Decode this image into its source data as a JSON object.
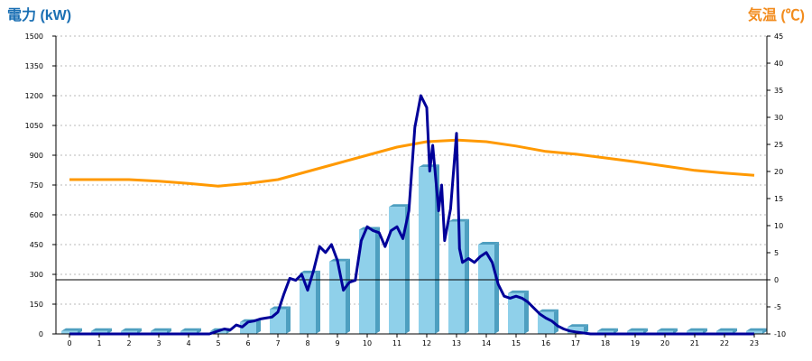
{
  "chart_data": {
    "type": "bar",
    "y_left_label": "電力 (kW)",
    "y_right_label": "気温 (℃)",
    "categories": [
      "0",
      "1",
      "2",
      "3",
      "4",
      "5",
      "6",
      "7",
      "8",
      "9",
      "10",
      "11",
      "12",
      "13",
      "14",
      "15",
      "16",
      "17",
      "18",
      "19",
      "20",
      "21",
      "22",
      "23"
    ],
    "y_left_ticks": [
      "0",
      "150",
      "300",
      "450",
      "600",
      "750",
      "900",
      "1050",
      "1200",
      "1350",
      "1500"
    ],
    "y_right_ticks": [
      "-10",
      "-5",
      "0",
      "5",
      "10",
      "15",
      "20",
      "25",
      "30",
      "35",
      "40",
      "45"
    ],
    "ylim_left": [
      0,
      1500
    ],
    "ylim_right": [
      -10,
      45
    ],
    "grid": true,
    "colors": {
      "bar": "#8fd0ea",
      "bar_side": "#4e9fc0",
      "power_line": "#000099",
      "temp_line": "#ff9900",
      "left_title": "#1a6fb3",
      "right_title": "#f28c1e"
    },
    "bars": [
      {
        "x": 0,
        "value": 15
      },
      {
        "x": 1,
        "value": 15
      },
      {
        "x": 2,
        "value": 15
      },
      {
        "x": 3,
        "value": 15
      },
      {
        "x": 4,
        "value": 15
      },
      {
        "x": 5,
        "value": 15
      },
      {
        "x": 6,
        "value": 60
      },
      {
        "x": 7,
        "value": 125
      },
      {
        "x": 8,
        "value": 305
      },
      {
        "x": 9,
        "value": 365
      },
      {
        "x": 10,
        "value": 525
      },
      {
        "x": 11,
        "value": 640
      },
      {
        "x": 12,
        "value": 840
      },
      {
        "x": 13,
        "value": 565
      },
      {
        "x": 14,
        "value": 450
      },
      {
        "x": 15,
        "value": 205
      },
      {
        "x": 16,
        "value": 110
      },
      {
        "x": 17,
        "value": 35
      },
      {
        "x": 18,
        "value": 15
      },
      {
        "x": 19,
        "value": 15
      },
      {
        "x": 20,
        "value": 15
      },
      {
        "x": 21,
        "value": 15
      },
      {
        "x": 22,
        "value": 15
      },
      {
        "x": 23,
        "value": 15
      }
    ],
    "power_line": {
      "x": [
        0,
        1,
        2,
        3,
        4,
        4.7,
        5,
        5.2,
        5.4,
        5.6,
        5.8,
        6,
        6.2,
        6.4,
        6.6,
        6.8,
        7,
        7.2,
        7.4,
        7.6,
        7.8,
        8,
        8.2,
        8.4,
        8.6,
        8.8,
        9,
        9.2,
        9.4,
        9.6,
        9.8,
        10,
        10.2,
        10.4,
        10.6,
        10.8,
        11,
        11.2,
        11.4,
        11.6,
        11.8,
        12,
        12.1,
        12.2,
        12.4,
        12.5,
        12.6,
        12.8,
        13,
        13.1,
        13.2,
        13.4,
        13.6,
        13.8,
        14,
        14.2,
        14.4,
        14.6,
        14.8,
        15,
        15.2,
        15.4,
        15.6,
        15.8,
        16,
        16.2,
        16.4,
        16.6,
        16.8,
        17,
        17.5,
        18,
        19,
        20,
        21,
        22,
        23
      ],
      "values": [
        0,
        0,
        0,
        0,
        0,
        0,
        15,
        25,
        20,
        45,
        35,
        60,
        65,
        75,
        80,
        85,
        110,
        200,
        280,
        270,
        300,
        220,
        320,
        440,
        410,
        450,
        370,
        220,
        260,
        270,
        470,
        540,
        520,
        510,
        440,
        520,
        540,
        480,
        620,
        1040,
        1200,
        1140,
        820,
        950,
        620,
        750,
        470,
        630,
        1010,
        430,
        360,
        380,
        360,
        390,
        410,
        360,
        250,
        190,
        180,
        190,
        180,
        160,
        130,
        100,
        80,
        65,
        40,
        25,
        15,
        10,
        0,
        0,
        0,
        0,
        0,
        0,
        0
      ]
    },
    "temp_line": {
      "x": [
        0,
        1,
        2,
        3,
        4,
        5,
        6,
        7,
        8,
        9,
        10,
        11,
        12,
        13,
        14,
        15,
        16,
        17,
        18,
        19,
        20,
        21,
        22,
        23
      ],
      "values": [
        18.5,
        18.5,
        18.5,
        18.2,
        17.8,
        17.3,
        17.8,
        18.5,
        20,
        21.5,
        23,
        24.5,
        25.5,
        25.8,
        25.5,
        24.7,
        23.7,
        23.2,
        22.5,
        21.8,
        21,
        20.2,
        19.7,
        19.3
      ]
    }
  }
}
